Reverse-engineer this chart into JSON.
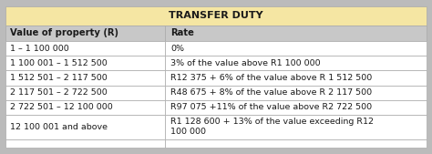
{
  "title": "TRANSFER DUTY",
  "title_bg": "#F5E6A3",
  "header_bg": "#C8C8C8",
  "border_color": "#AAAAAA",
  "outer_bg": "#BBBBBB",
  "header_col1": "Value of property (R)",
  "header_col2": "Rate",
  "rows": [
    [
      "1 – 1 100 000",
      "0%"
    ],
    [
      "1 100 001 – 1 512 500",
      "3% of the value above R1 100 000"
    ],
    [
      "1 512 501 – 2 117 500",
      "R12 375 + 6% of the value above R 1 512 500"
    ],
    [
      "2 117 501 – 2 722 500",
      "R48 675 + 8% of the value above R 2 117 500"
    ],
    [
      "2 722 501 – 12 100 000",
      "R97 075 +11% of the value above R2 722 500"
    ],
    [
      "12 100 001 and above",
      "R1 128 600 + 13% of the value exceeding R12\n100 000"
    ]
  ],
  "col_split": 0.38,
  "figsize": [
    4.74,
    1.69
  ],
  "dpi": 100,
  "font_size_title": 8.0,
  "font_size_header": 7.2,
  "font_size_data": 6.8
}
